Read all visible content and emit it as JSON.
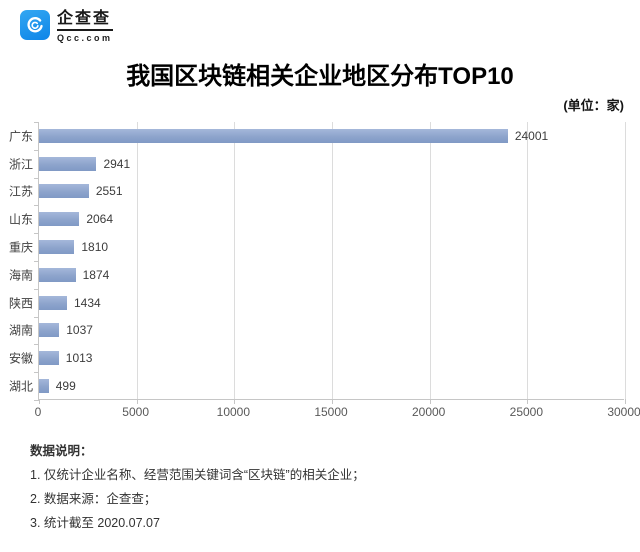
{
  "brand": {
    "name": "企查查",
    "domain": "Qcc.com",
    "logo_color": "#0d85e8",
    "swirl_icon": "qcc-swirl"
  },
  "header": {
    "title": "我国区块链相关企业地区分布TOP10",
    "unit_label": "(单位：家)"
  },
  "chart_data": {
    "type": "bar",
    "orientation": "horizontal",
    "title": "我国区块链相关企业地区分布TOP10",
    "categories": [
      "广东",
      "浙江",
      "江苏",
      "山东",
      "重庆",
      "海南",
      "陕西",
      "湖南",
      "安徽",
      "湖北"
    ],
    "values": [
      24001,
      2941,
      2551,
      2064,
      1810,
      1874,
      1434,
      1037,
      1013,
      499
    ],
    "x_ticks": [
      0,
      5000,
      10000,
      15000,
      20000,
      25000,
      30000
    ],
    "xlim": [
      0,
      30000
    ],
    "xlabel": "",
    "ylabel": "",
    "unit": "家",
    "bar_color": "#8da4cc",
    "grid": "vertical",
    "value_labels": true,
    "legend": "none"
  },
  "footer": {
    "heading": "数据说明：",
    "notes": [
      "1. 仅统计企业名称、经营范围关键词含“区块链”的相关企业；",
      "2. 数据来源：企查查；",
      "3. 统计截至 2020.07.07"
    ]
  }
}
